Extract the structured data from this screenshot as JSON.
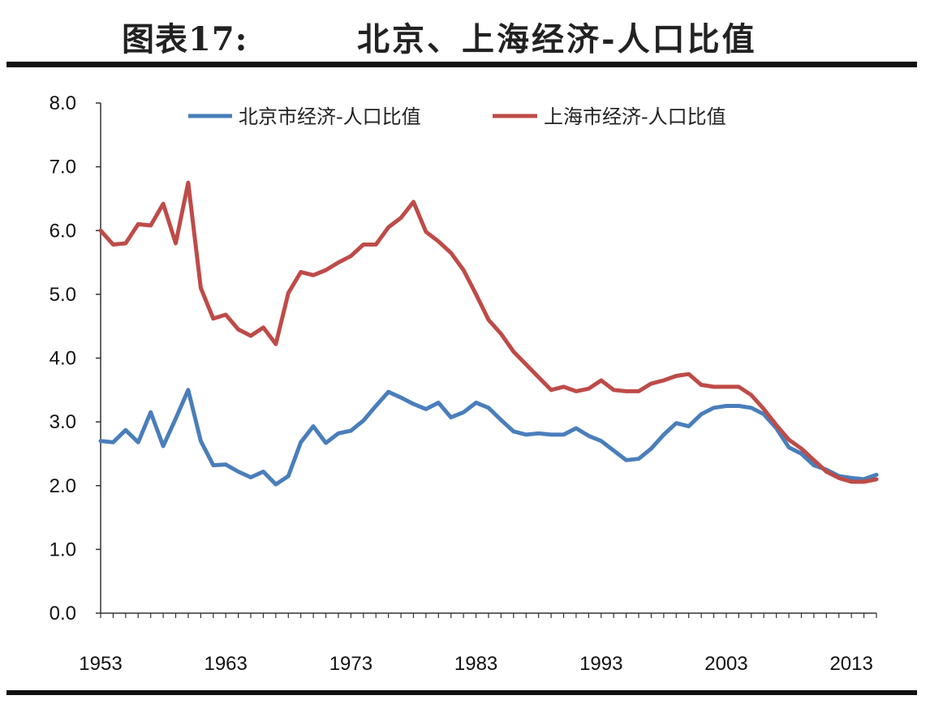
{
  "title": {
    "label": "图表17:",
    "text": "北京、上海经济-人口比值"
  },
  "colors": {
    "beijing": "#4a7ebb",
    "shanghai": "#be4b48",
    "axis": "#333333"
  },
  "chart_data": {
    "type": "line",
    "title": "北京、上海经济-人口比值",
    "xlabel": "",
    "ylabel": "",
    "xlim": [
      1953,
      2015
    ],
    "ylim": [
      0,
      8
    ],
    "ytick_values": [
      0,
      1,
      2,
      3,
      4,
      5,
      6,
      7,
      8
    ],
    "ytick_labels": [
      "0.0",
      "1.0",
      "2.0",
      "3.0",
      "4.0",
      "5.0",
      "6.0",
      "7.0",
      "8.0"
    ],
    "xtick_values": [
      1953,
      1963,
      1973,
      1983,
      1993,
      2003,
      2013
    ],
    "xtick_labels": [
      "1953",
      "1963",
      "1973",
      "1983",
      "1993",
      "2003",
      "2013"
    ],
    "legend_position": "top",
    "x": [
      1953,
      1954,
      1955,
      1956,
      1957,
      1958,
      1959,
      1960,
      1961,
      1962,
      1963,
      1964,
      1965,
      1966,
      1967,
      1968,
      1969,
      1970,
      1971,
      1972,
      1973,
      1974,
      1975,
      1976,
      1977,
      1978,
      1979,
      1980,
      1981,
      1982,
      1983,
      1984,
      1985,
      1986,
      1987,
      1988,
      1989,
      1990,
      1991,
      1992,
      1993,
      1994,
      1995,
      1996,
      1997,
      1998,
      1999,
      2000,
      2001,
      2002,
      2003,
      2004,
      2005,
      2006,
      2007,
      2008,
      2009,
      2010,
      2011,
      2012,
      2013,
      2014,
      2015
    ],
    "series": [
      {
        "name": "北京市经济-人口比值",
        "color_key": "beijing",
        "values": [
          2.7,
          2.68,
          2.87,
          2.68,
          3.15,
          2.62,
          3.05,
          3.5,
          2.7,
          2.32,
          2.33,
          2.22,
          2.13,
          2.22,
          2.02,
          2.15,
          2.68,
          2.93,
          2.67,
          2.82,
          2.86,
          3.02,
          3.25,
          3.47,
          3.38,
          3.28,
          3.2,
          3.3,
          3.07,
          3.15,
          3.3,
          3.22,
          3.03,
          2.85,
          2.8,
          2.82,
          2.8,
          2.8,
          2.9,
          2.78,
          2.7,
          2.55,
          2.4,
          2.42,
          2.58,
          2.8,
          2.98,
          2.93,
          3.12,
          3.22,
          3.25,
          3.25,
          3.22,
          3.12,
          2.9,
          2.6,
          2.5,
          2.32,
          2.25,
          2.15,
          2.12,
          2.1,
          2.17
        ]
      },
      {
        "name": "上海市经济-人口比值",
        "color_key": "shanghai",
        "values": [
          6.0,
          5.78,
          5.8,
          6.1,
          6.08,
          6.42,
          5.8,
          6.75,
          5.1,
          4.62,
          4.68,
          4.45,
          4.35,
          4.48,
          4.22,
          5.02,
          5.35,
          5.3,
          5.38,
          5.5,
          5.6,
          5.78,
          5.78,
          6.05,
          6.2,
          6.45,
          5.98,
          5.83,
          5.65,
          5.38,
          5.0,
          4.6,
          4.38,
          4.1,
          3.9,
          3.7,
          3.5,
          3.55,
          3.48,
          3.52,
          3.65,
          3.5,
          3.48,
          3.48,
          3.6,
          3.65,
          3.72,
          3.75,
          3.58,
          3.55,
          3.55,
          3.55,
          3.42,
          3.2,
          2.95,
          2.72,
          2.58,
          2.4,
          2.22,
          2.12,
          2.06,
          2.06,
          2.1
        ]
      }
    ]
  }
}
